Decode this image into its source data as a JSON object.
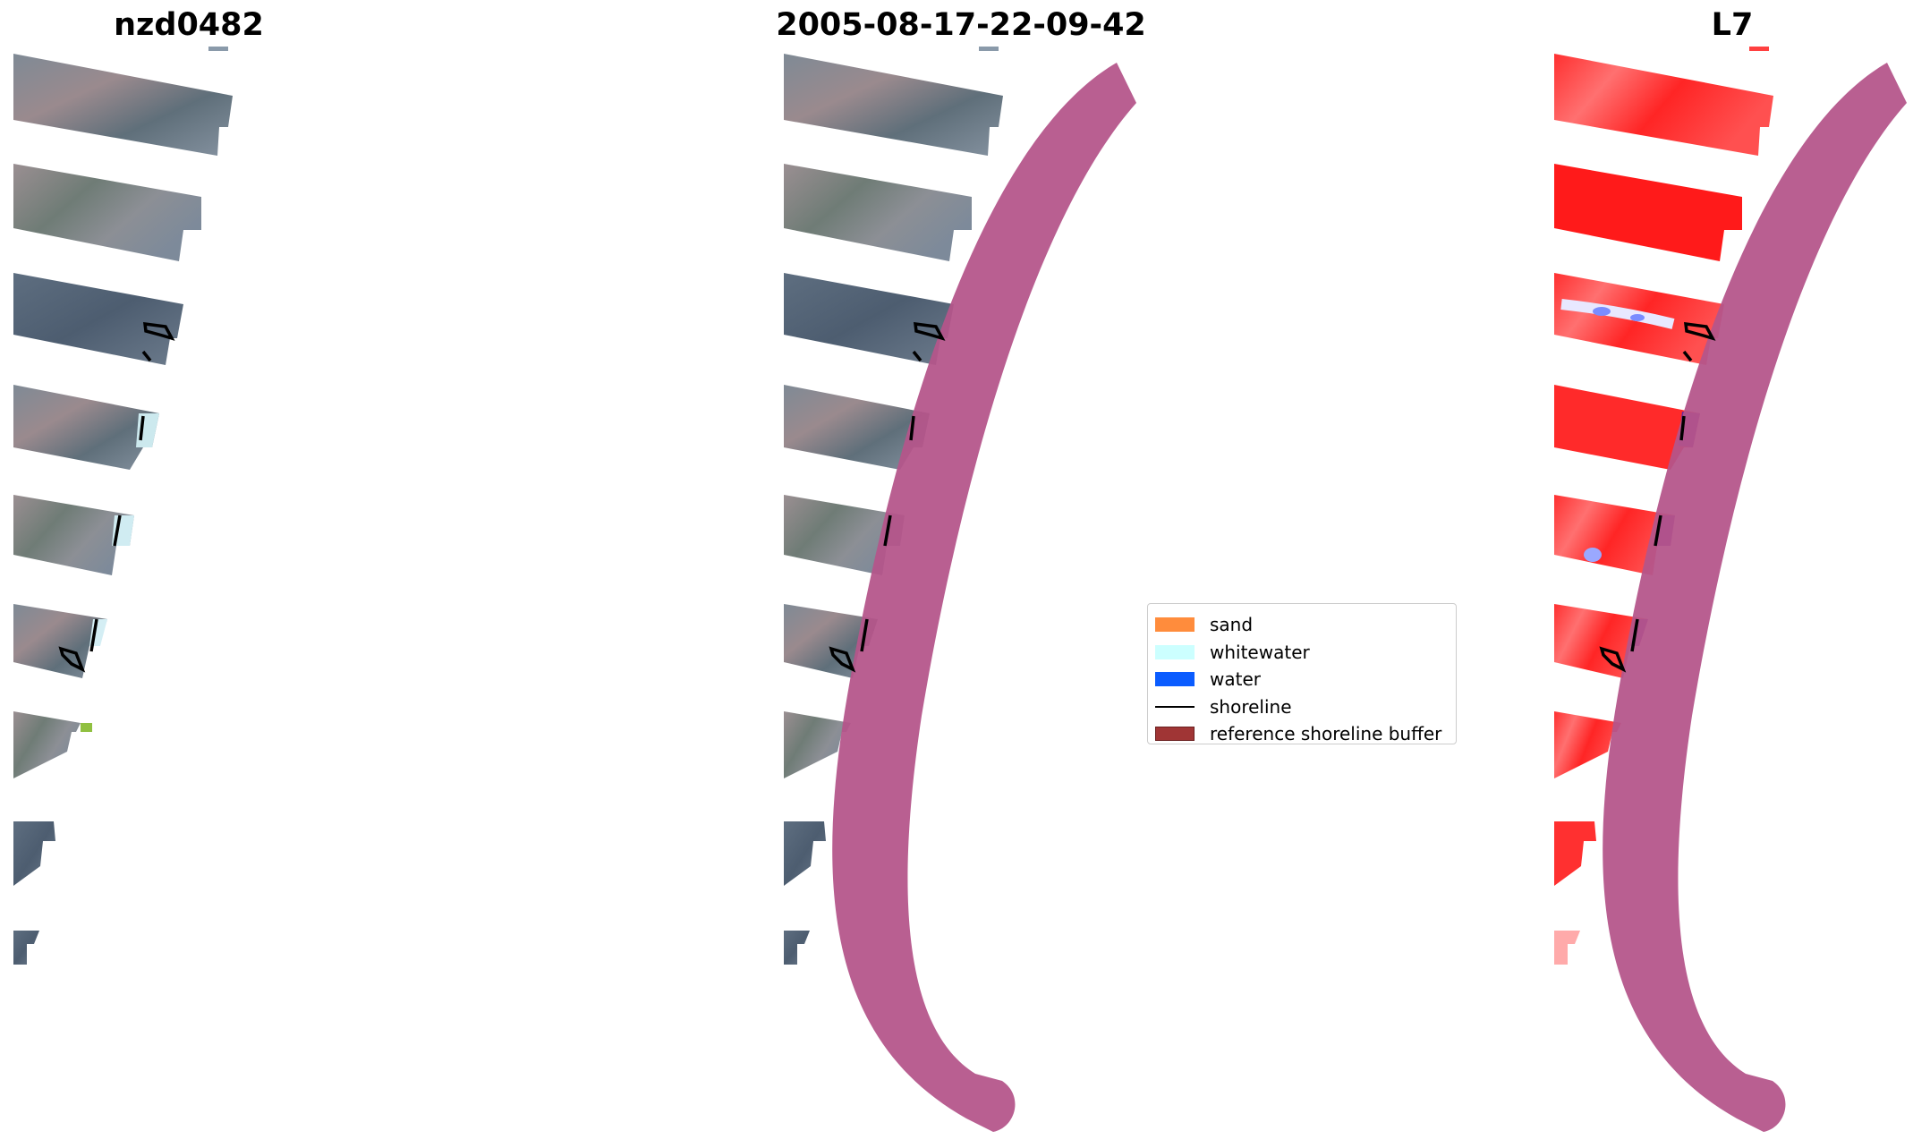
{
  "titles": {
    "site": "nzd0482",
    "date": "2005-08-17-22-09-42",
    "satellite": "L7"
  },
  "legend": {
    "items": [
      {
        "label": "sand",
        "color": "#ff8c3c",
        "kind": "patch"
      },
      {
        "label": "whitewater",
        "color": "#ccffff",
        "kind": "patch"
      },
      {
        "label": "water",
        "color": "#0a5cff",
        "kind": "patch"
      },
      {
        "label": "shoreline",
        "color": "#000000",
        "kind": "line"
      },
      {
        "label": "reference shoreline buffer",
        "color": "#a03535",
        "kind": "patch"
      }
    ]
  },
  "colors": {
    "buffer_overlay": "#b5558a",
    "rgb_land": "#6e7c8c",
    "index_red": "#ff2020"
  }
}
